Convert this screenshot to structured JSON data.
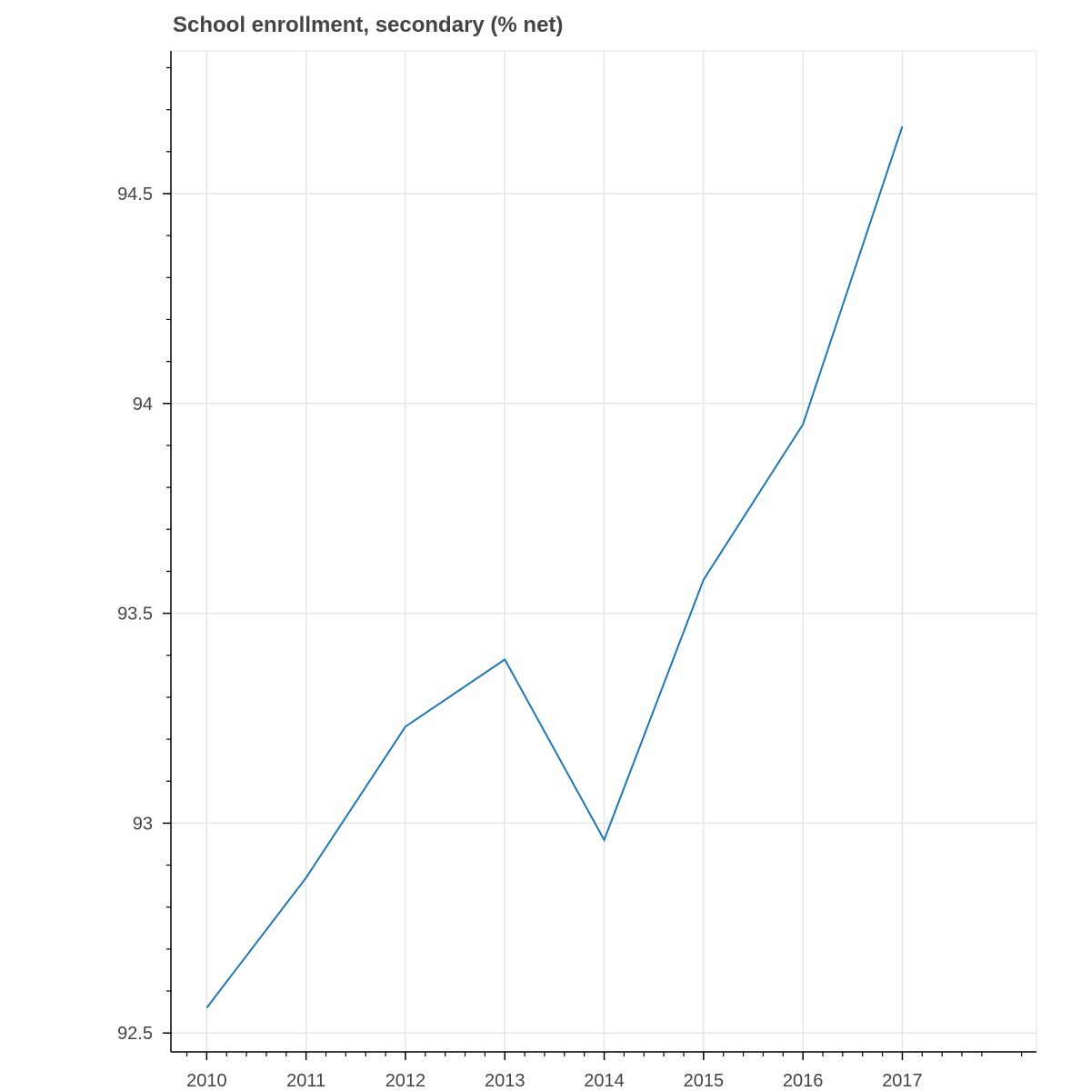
{
  "chart_data": {
    "type": "line",
    "title": "School enrollment, secondary (% net)",
    "xlabel": "",
    "ylabel": "",
    "x": [
      2010,
      2011,
      2012,
      2013,
      2014,
      2015,
      2016,
      2017
    ],
    "series": [
      {
        "values": [
          92.56,
          92.87,
          93.23,
          93.39,
          92.96,
          93.58,
          93.95,
          94.66
        ]
      }
    ],
    "x_ticks": [
      "2010",
      "2011",
      "2012",
      "2013",
      "2014",
      "2015",
      "2016",
      "2017"
    ],
    "y_ticks": [
      {
        "value": 92.5,
        "label": "92.5"
      },
      {
        "value": 93,
        "label": "93"
      },
      {
        "value": 93.5,
        "label": "93.5"
      },
      {
        "value": 94,
        "label": "94"
      },
      {
        "value": 94.5,
        "label": "94.5"
      }
    ],
    "xlim": [
      2009.64,
      2018.35
    ],
    "ylim": [
      92.455,
      94.84
    ],
    "grid": true,
    "line_color": "#1f77b4",
    "grid_color": "#e5e5e5",
    "axis_color": "#000000",
    "text_color": "#444444"
  }
}
